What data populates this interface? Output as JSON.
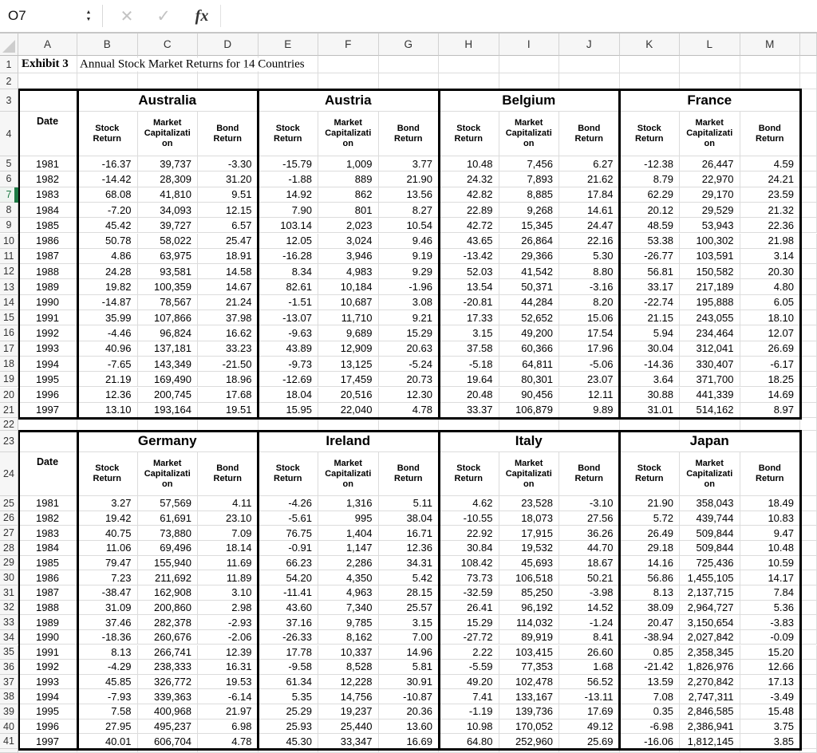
{
  "app": {
    "formula_bar": {
      "cell_reference": "O7",
      "stepper_up": "▲",
      "stepper_down": "▼",
      "cancel": "✕",
      "confirm": "✓",
      "fx_label": "fx"
    }
  },
  "colors": {
    "selection_accent": "#1e7b45",
    "table_border": "#000000",
    "header_bg": "#f6f6f6",
    "grid_line": "#dcdcdc"
  },
  "sheet": {
    "column_headers": [
      "A",
      "B",
      "C",
      "D",
      "E",
      "F",
      "G",
      "H",
      "I",
      "J",
      "K",
      "L",
      "M"
    ],
    "row_count": 41,
    "selected_row": 7,
    "title_cell": {
      "label": "Exhibit 3",
      "title": "Annual Stock Market Returns for 14 Countries"
    },
    "date_header": "Date",
    "column_subheaders": [
      "Stock\nReturn",
      "Market\nCapitalizati\non",
      "Bond\nReturn"
    ],
    "tables": [
      {
        "years": [
          "1981",
          "1982",
          "1983",
          "1984",
          "1985",
          "1986",
          "1987",
          "1988",
          "1989",
          "1990",
          "1991",
          "1992",
          "1993",
          "1994",
          "1995",
          "1996",
          "1997"
        ],
        "countries": [
          {
            "name": "Australia",
            "data": [
              [
                "-16.37",
                "39,737",
                "-3.30"
              ],
              [
                "-14.42",
                "28,309",
                "31.20"
              ],
              [
                "68.08",
                "41,810",
                "9.51"
              ],
              [
                "-7.20",
                "34,093",
                "12.15"
              ],
              [
                "45.42",
                "39,727",
                "6.57"
              ],
              [
                "50.78",
                "58,022",
                "25.47"
              ],
              [
                "4.86",
                "63,975",
                "18.91"
              ],
              [
                "24.28",
                "93,581",
                "14.58"
              ],
              [
                "19.82",
                "100,359",
                "14.67"
              ],
              [
                "-14.87",
                "78,567",
                "21.24"
              ],
              [
                "35.99",
                "107,866",
                "37.98"
              ],
              [
                "-4.46",
                "96,824",
                "16.62"
              ],
              [
                "40.96",
                "137,181",
                "33.23"
              ],
              [
                "-7.65",
                "143,349",
                "-21.50"
              ],
              [
                "21.19",
                "169,490",
                "18.96"
              ],
              [
                "12.36",
                "200,745",
                "17.68"
              ],
              [
                "13.10",
                "193,164",
                "19.51"
              ]
            ]
          },
          {
            "name": "Austria",
            "data": [
              [
                "-15.79",
                "1,009",
                "3.77"
              ],
              [
                "-1.88",
                "889",
                "21.90"
              ],
              [
                "14.92",
                "862",
                "13.56"
              ],
              [
                "7.90",
                "801",
                "8.27"
              ],
              [
                "103.14",
                "2,023",
                "10.54"
              ],
              [
                "12.05",
                "3,024",
                "9.46"
              ],
              [
                "-16.28",
                "3,946",
                "9.19"
              ],
              [
                "8.34",
                "4,983",
                "9.29"
              ],
              [
                "82.61",
                "10,184",
                "-1.96"
              ],
              [
                "-1.51",
                "10,687",
                "3.08"
              ],
              [
                "-13.07",
                "11,710",
                "9.21"
              ],
              [
                "-9.63",
                "9,689",
                "15.29"
              ],
              [
                "43.89",
                "12,909",
                "20.63"
              ],
              [
                "-9.73",
                "13,125",
                "-5.24"
              ],
              [
                "-12.69",
                "17,459",
                "20.73"
              ],
              [
                "18.04",
                "20,516",
                "12.30"
              ],
              [
                "15.95",
                "22,040",
                "4.78"
              ]
            ]
          },
          {
            "name": "Belgium",
            "data": [
              [
                "10.48",
                "7,456",
                "6.27"
              ],
              [
                "24.32",
                "7,893",
                "21.62"
              ],
              [
                "42.82",
                "8,885",
                "17.84"
              ],
              [
                "22.89",
                "9,268",
                "14.61"
              ],
              [
                "42.72",
                "15,345",
                "24.47"
              ],
              [
                "43.65",
                "26,864",
                "22.16"
              ],
              [
                "-13.42",
                "29,366",
                "5.30"
              ],
              [
                "52.03",
                "41,542",
                "8.80"
              ],
              [
                "13.54",
                "50,371",
                "-3.16"
              ],
              [
                "-20.81",
                "44,284",
                "8.20"
              ],
              [
                "17.33",
                "52,652",
                "15.06"
              ],
              [
                "3.15",
                "49,200",
                "17.54"
              ],
              [
                "37.58",
                "60,366",
                "17.96"
              ],
              [
                "-5.18",
                "64,811",
                "-5.06"
              ],
              [
                "19.64",
                "80,301",
                "23.07"
              ],
              [
                "20.48",
                "90,456",
                "12.11"
              ],
              [
                "33.37",
                "106,879",
                "9.89"
              ]
            ]
          },
          {
            "name": "France",
            "data": [
              [
                "-12.38",
                "26,447",
                "4.59"
              ],
              [
                "8.79",
                "22,970",
                "24.21"
              ],
              [
                "62.29",
                "29,170",
                "23.59"
              ],
              [
                "20.12",
                "29,529",
                "21.32"
              ],
              [
                "48.59",
                "53,943",
                "22.36"
              ],
              [
                "53.38",
                "100,302",
                "21.98"
              ],
              [
                "-26.77",
                "103,591",
                "3.14"
              ],
              [
                "56.81",
                "150,582",
                "20.30"
              ],
              [
                "33.17",
                "217,189",
                "4.80"
              ],
              [
                "-22.74",
                "195,888",
                "6.05"
              ],
              [
                "21.15",
                "243,055",
                "18.10"
              ],
              [
                "5.94",
                "234,464",
                "12.07"
              ],
              [
                "30.04",
                "312,041",
                "26.69"
              ],
              [
                "-14.36",
                "330,407",
                "-6.17"
              ],
              [
                "3.64",
                "371,700",
                "18.25"
              ],
              [
                "30.88",
                "441,339",
                "14.69"
              ],
              [
                "31.01",
                "514,162",
                "8.97"
              ]
            ]
          }
        ]
      },
      {
        "years": [
          "1981",
          "1982",
          "1983",
          "1984",
          "1985",
          "1986",
          "1987",
          "1988",
          "1989",
          "1990",
          "1991",
          "1992",
          "1993",
          "1994",
          "1995",
          "1996",
          "1997"
        ],
        "countries": [
          {
            "name": "Germany",
            "data": [
              [
                "3.27",
                "57,569",
                "4.11"
              ],
              [
                "19.42",
                "61,691",
                "23.10"
              ],
              [
                "40.75",
                "73,880",
                "7.09"
              ],
              [
                "11.06",
                "69,496",
                "18.14"
              ],
              [
                "79.47",
                "155,940",
                "11.69"
              ],
              [
                "7.23",
                "211,692",
                "11.89"
              ],
              [
                "-38.47",
                "162,908",
                "3.10"
              ],
              [
                "31.09",
                "200,860",
                "2.98"
              ],
              [
                "37.46",
                "282,378",
                "-2.93"
              ],
              [
                "-18.36",
                "260,676",
                "-2.06"
              ],
              [
                "8.13",
                "266,741",
                "12.39"
              ],
              [
                "-4.29",
                "238,333",
                "16.31"
              ],
              [
                "45.85",
                "326,772",
                "19.53"
              ],
              [
                "-7.93",
                "339,363",
                "-6.14"
              ],
              [
                "7.58",
                "400,968",
                "21.97"
              ],
              [
                "27.95",
                "495,237",
                "6.98"
              ],
              [
                "40.01",
                "606,704",
                "4.78"
              ]
            ]
          },
          {
            "name": "Ireland",
            "data": [
              [
                "-4.26",
                "1,316",
                "5.11"
              ],
              [
                "-5.61",
                "995",
                "38.04"
              ],
              [
                "76.75",
                "1,404",
                "16.71"
              ],
              [
                "-0.91",
                "1,147",
                "12.36"
              ],
              [
                "66.23",
                "2,286",
                "34.31"
              ],
              [
                "54.20",
                "4,350",
                "5.42"
              ],
              [
                "-11.41",
                "4,963",
                "28.15"
              ],
              [
                "43.60",
                "7,340",
                "25.57"
              ],
              [
                "37.16",
                "9,785",
                "3.15"
              ],
              [
                "-26.33",
                "8,162",
                "7.00"
              ],
              [
                "17.78",
                "10,337",
                "14.96"
              ],
              [
                "-9.58",
                "8,528",
                "5.81"
              ],
              [
                "61.34",
                "12,228",
                "30.91"
              ],
              [
                "5.35",
                "14,756",
                "-10.87"
              ],
              [
                "25.29",
                "19,237",
                "20.36"
              ],
              [
                "25.93",
                "25,440",
                "13.60"
              ],
              [
                "45.30",
                "33,347",
                "16.69"
              ]
            ]
          },
          {
            "name": "Italy",
            "data": [
              [
                "4.62",
                "23,528",
                "-3.10"
              ],
              [
                "-10.55",
                "18,073",
                "27.56"
              ],
              [
                "22.92",
                "17,915",
                "36.26"
              ],
              [
                "30.84",
                "19,532",
                "44.70"
              ],
              [
                "108.42",
                "45,693",
                "18.67"
              ],
              [
                "73.73",
                "106,518",
                "50.21"
              ],
              [
                "-32.59",
                "85,250",
                "-3.98"
              ],
              [
                "26.41",
                "96,192",
                "14.52"
              ],
              [
                "15.29",
                "114,032",
                "-1.24"
              ],
              [
                "-27.72",
                "89,919",
                "8.41"
              ],
              [
                "2.22",
                "103,415",
                "26.60"
              ],
              [
                "-5.59",
                "77,353",
                "1.68"
              ],
              [
                "49.20",
                "102,478",
                "56.52"
              ],
              [
                "7.41",
                "133,167",
                "-13.11"
              ],
              [
                "-1.19",
                "139,736",
                "17.69"
              ],
              [
                "10.98",
                "170,052",
                "49.12"
              ],
              [
                "64.80",
                "252,960",
                "25.69"
              ]
            ]
          },
          {
            "name": "Japan",
            "data": [
              [
                "21.90",
                "358,043",
                "18.49"
              ],
              [
                "5.72",
                "439,744",
                "10.83"
              ],
              [
                "26.49",
                "509,844",
                "9.47"
              ],
              [
                "29.18",
                "509,844",
                "10.48"
              ],
              [
                "14.16",
                "725,436",
                "10.59"
              ],
              [
                "56.86",
                "1,455,105",
                "14.17"
              ],
              [
                "8.13",
                "2,137,715",
                "7.84"
              ],
              [
                "38.09",
                "2,964,727",
                "5.36"
              ],
              [
                "20.47",
                "3,150,654",
                "-3.83"
              ],
              [
                "-38.94",
                "2,027,842",
                "-0.09"
              ],
              [
                "0.85",
                "2,358,345",
                "15.20"
              ],
              [
                "-21.42",
                "1,826,976",
                "12.66"
              ],
              [
                "13.59",
                "2,270,842",
                "17.13"
              ],
              [
                "7.08",
                "2,747,311",
                "-3.49"
              ],
              [
                "0.35",
                "2,846,585",
                "15.48"
              ],
              [
                "-6.98",
                "2,386,941",
                "3.75"
              ],
              [
                "-16.06",
                "1,812,145",
                "3.85"
              ]
            ]
          }
        ]
      }
    ]
  }
}
